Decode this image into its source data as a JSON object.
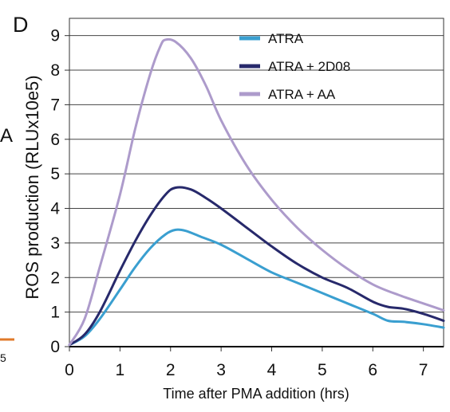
{
  "panel": {
    "letter": "D"
  },
  "edge_fragments": {
    "left_text": "A",
    "left_number": "5",
    "left_mark_color": "#e07a2a"
  },
  "chart_data": {
    "type": "line",
    "xlabel": "Time after PMA addition (hrs)",
    "ylabel": "ROS production (RLUx10e5)",
    "xlim": [
      0,
      7.4
    ],
    "ylim": [
      0,
      9.5
    ],
    "xticks": [
      0,
      1,
      2,
      3,
      4,
      5,
      6,
      7
    ],
    "yticks": [
      0,
      1,
      2,
      3,
      4,
      5,
      6,
      7,
      8,
      9
    ],
    "grid": "horizontal",
    "legend": "top-right",
    "series": [
      {
        "name": "ATRA",
        "color": "#3a9fd0",
        "points": [
          [
            0,
            0.05
          ],
          [
            0.3,
            0.3
          ],
          [
            0.6,
            0.8
          ],
          [
            1.0,
            1.65
          ],
          [
            1.3,
            2.3
          ],
          [
            1.6,
            2.85
          ],
          [
            1.9,
            3.25
          ],
          [
            2.1,
            3.38
          ],
          [
            2.3,
            3.35
          ],
          [
            2.6,
            3.18
          ],
          [
            3.0,
            2.95
          ],
          [
            3.5,
            2.55
          ],
          [
            4.0,
            2.15
          ],
          [
            4.5,
            1.85
          ],
          [
            5.0,
            1.55
          ],
          [
            5.5,
            1.25
          ],
          [
            6.0,
            0.95
          ],
          [
            6.3,
            0.75
          ],
          [
            6.6,
            0.72
          ],
          [
            7.0,
            0.65
          ],
          [
            7.4,
            0.55
          ]
        ]
      },
      {
        "name": "ATRA + 2D08",
        "color": "#27296b",
        "points": [
          [
            0,
            0.05
          ],
          [
            0.3,
            0.35
          ],
          [
            0.6,
            1.0
          ],
          [
            1.0,
            2.2
          ],
          [
            1.3,
            3.05
          ],
          [
            1.6,
            3.8
          ],
          [
            1.9,
            4.4
          ],
          [
            2.1,
            4.6
          ],
          [
            2.4,
            4.55
          ],
          [
            2.7,
            4.3
          ],
          [
            3.0,
            4.0
          ],
          [
            3.5,
            3.45
          ],
          [
            4.0,
            2.9
          ],
          [
            4.5,
            2.4
          ],
          [
            5.0,
            2.0
          ],
          [
            5.5,
            1.7
          ],
          [
            6.0,
            1.3
          ],
          [
            6.3,
            1.15
          ],
          [
            6.6,
            1.1
          ],
          [
            7.0,
            0.95
          ],
          [
            7.4,
            0.75
          ]
        ]
      },
      {
        "name": "ATRA + AA",
        "color": "#ad9bcb",
        "points": [
          [
            0,
            0.05
          ],
          [
            0.3,
            0.8
          ],
          [
            0.6,
            2.3
          ],
          [
            1.0,
            4.4
          ],
          [
            1.3,
            6.3
          ],
          [
            1.6,
            7.9
          ],
          [
            1.8,
            8.7
          ],
          [
            1.9,
            8.88
          ],
          [
            2.1,
            8.82
          ],
          [
            2.4,
            8.35
          ],
          [
            2.7,
            7.55
          ],
          [
            3.0,
            6.55
          ],
          [
            3.5,
            5.25
          ],
          [
            4.0,
            4.25
          ],
          [
            4.5,
            3.45
          ],
          [
            5.0,
            2.8
          ],
          [
            5.5,
            2.25
          ],
          [
            6.0,
            1.8
          ],
          [
            6.5,
            1.5
          ],
          [
            7.0,
            1.25
          ],
          [
            7.4,
            1.05
          ]
        ]
      }
    ]
  }
}
